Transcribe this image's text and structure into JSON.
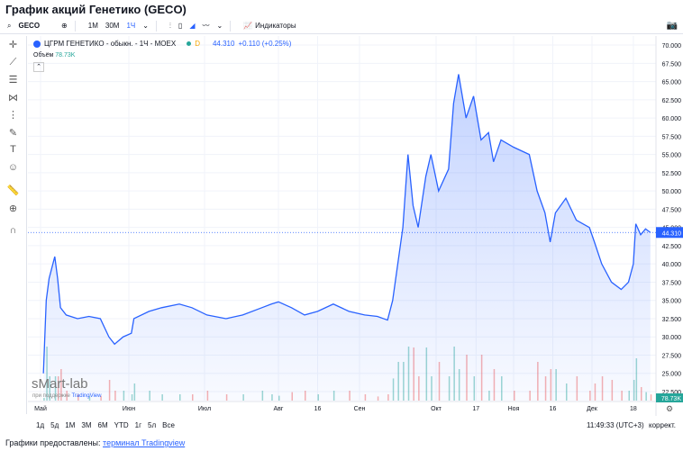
{
  "title": "График акций Генетико (GECO)",
  "toolbar": {
    "symbol": "GECO",
    "intervals": [
      "1М",
      "30М",
      "1Ч"
    ],
    "active_interval": "1Ч",
    "indicators": "Индикаторы"
  },
  "legend": {
    "name": "ЦГРМ ГЕНЕТИКО - обыкн. - 1Ч - MOEX",
    "badge": "D",
    "price": "44.310",
    "change": "+0.110 (+0.25%)",
    "volume_label": "Объём",
    "volume_value": "78.73K"
  },
  "watermark": {
    "brand": "sMart-lab",
    "sub": "при поддержке",
    "sub_link": "TradingView"
  },
  "ranges": [
    "1д",
    "5д",
    "1М",
    "3М",
    "6М",
    "YTD",
    "1г",
    "5л",
    "Все"
  ],
  "clock": "11:49:33 (UTC+3)",
  "adjust": "коррект.",
  "footer": {
    "text": "Графики предоставлены:",
    "link": "терминал Tradingview"
  },
  "colors": {
    "line": "#2962ff",
    "accent": "#2962ff",
    "volume_up": "#26a69a",
    "volume_down": "#ef5350"
  },
  "chart_data": {
    "type": "area",
    "ylim": [
      22.5,
      70
    ],
    "yticks": [
      "70.000",
      "67.500",
      "65.000",
      "62.500",
      "60.000",
      "57.500",
      "55.000",
      "52.500",
      "50.000",
      "47.500",
      "45.000",
      "42.500",
      "40.000",
      "37.500",
      "35.000",
      "32.500",
      "30.000",
      "27.500",
      "25.000",
      "22.500"
    ],
    "xticks": [
      [
        "Май",
        "05-01"
      ],
      [
        "Июн",
        "06-01"
      ],
      [
        "Июл",
        "07-01"
      ],
      [
        "Авг",
        "08-01"
      ],
      [
        "16",
        "08-16"
      ],
      [
        "Сен",
        "09-01"
      ],
      [
        "Окт",
        "10-01"
      ],
      [
        "17",
        "10-17"
      ],
      [
        "Ноя",
        "11-01"
      ],
      [
        "16",
        "11-16"
      ],
      [
        "Дек",
        "12-01"
      ],
      [
        "18",
        "12-18"
      ]
    ],
    "last_price": 44.31,
    "last_volume_label": "78.73K",
    "points": [
      [
        "05-02",
        25
      ],
      [
        "05-03",
        35
      ],
      [
        "05-04",
        38
      ],
      [
        "05-06",
        41
      ],
      [
        "05-07",
        38
      ],
      [
        "05-08",
        34
      ],
      [
        "05-10",
        33
      ],
      [
        "05-14",
        32.5
      ],
      [
        "05-18",
        32.8
      ],
      [
        "05-22",
        32.5
      ],
      [
        "05-25",
        30
      ],
      [
        "05-27",
        29
      ],
      [
        "05-30",
        30
      ],
      [
        "06-02",
        30.5
      ],
      [
        "06-03",
        32.5
      ],
      [
        "06-09",
        33.5
      ],
      [
        "06-14",
        34
      ],
      [
        "06-21",
        34.5
      ],
      [
        "06-26",
        34
      ],
      [
        "07-02",
        33
      ],
      [
        "07-10",
        32.5
      ],
      [
        "07-17",
        33
      ],
      [
        "07-25",
        34
      ],
      [
        "07-29",
        34.5
      ],
      [
        "08-01",
        34.8
      ],
      [
        "08-06",
        34
      ],
      [
        "08-11",
        33
      ],
      [
        "08-16",
        33.5
      ],
      [
        "08-22",
        34.5
      ],
      [
        "08-28",
        33.5
      ],
      [
        "09-03",
        33
      ],
      [
        "09-08",
        32.8
      ],
      [
        "09-12",
        32.3
      ],
      [
        "09-14",
        35
      ],
      [
        "09-16",
        40
      ],
      [
        "09-18",
        45
      ],
      [
        "09-20",
        55
      ],
      [
        "09-22",
        48
      ],
      [
        "09-24",
        45
      ],
      [
        "09-27",
        52
      ],
      [
        "09-29",
        55
      ],
      [
        "10-02",
        50
      ],
      [
        "10-06",
        53
      ],
      [
        "10-08",
        62
      ],
      [
        "10-10",
        66
      ],
      [
        "10-13",
        60
      ],
      [
        "10-16",
        63
      ],
      [
        "10-19",
        57
      ],
      [
        "10-22",
        58
      ],
      [
        "10-24",
        54
      ],
      [
        "10-27",
        57
      ],
      [
        "11-01",
        56
      ],
      [
        "11-07",
        55
      ],
      [
        "11-10",
        50
      ],
      [
        "11-13",
        47
      ],
      [
        "11-15",
        43
      ],
      [
        "11-17",
        47
      ],
      [
        "11-21",
        49
      ],
      [
        "11-25",
        46
      ],
      [
        "11-30",
        45
      ],
      [
        "12-02",
        43
      ],
      [
        "12-05",
        40
      ],
      [
        "12-09",
        37.5
      ],
      [
        "12-13",
        36.5
      ],
      [
        "12-16",
        37.5
      ],
      [
        "12-18",
        40
      ],
      [
        "12-19",
        45.5
      ],
      [
        "12-21",
        44
      ],
      [
        "12-23",
        44.8
      ],
      [
        "12-25",
        44.31
      ]
    ]
  }
}
